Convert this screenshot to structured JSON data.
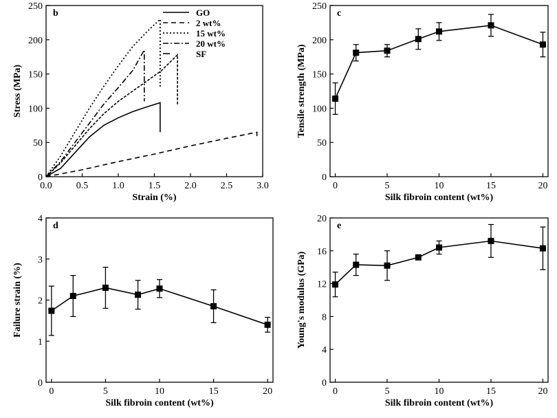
{
  "chart_data": [
    {
      "panel": "b",
      "type": "line",
      "xlabel": "Strain (%)",
      "ylabel": "Stress (MPa)",
      "xlim": [
        0,
        3.0
      ],
      "ylim": [
        0,
        250
      ],
      "xticks": [
        "0.0",
        "0.5",
        "1.0",
        "1.5",
        "2.0",
        "2.5",
        "3.0"
      ],
      "yticks": [
        "0",
        "50",
        "100",
        "150",
        "200",
        "250"
      ],
      "legend_position": "top-right",
      "series": [
        {
          "name": "GO",
          "dash": "solid",
          "x": [
            0,
            0.2,
            0.4,
            0.6,
            0.8,
            1.0,
            1.2,
            1.4,
            1.58,
            1.58
          ],
          "y": [
            0,
            12,
            35,
            58,
            75,
            86,
            95,
            102,
            108,
            65
          ]
        },
        {
          "name": "2 wt%",
          "dash": "dashed",
          "x": [
            0,
            0.5,
            1.0,
            1.5,
            2.0,
            2.5,
            2.92,
            2.92
          ],
          "y": [
            0,
            10,
            22,
            33,
            45,
            56,
            65,
            55
          ]
        },
        {
          "name": "15 wt%",
          "dash": "dotted",
          "x": [
            0,
            0.2,
            0.4,
            0.6,
            0.8,
            1.0,
            1.2,
            1.4,
            1.58,
            1.58
          ],
          "y": [
            0,
            30,
            65,
            100,
            132,
            162,
            190,
            212,
            230,
            130
          ]
        },
        {
          "name": "20 wt%",
          "dash": "dashdot",
          "x": [
            0,
            0.2,
            0.4,
            0.6,
            0.8,
            1.0,
            1.2,
            1.36,
            1.36
          ],
          "y": [
            0,
            22,
            50,
            78,
            106,
            130,
            155,
            185,
            110
          ]
        },
        {
          "name": "SF",
          "dash": "dense",
          "x": [
            0,
            0.2,
            0.4,
            0.6,
            0.8,
            1.0,
            1.2,
            1.4,
            1.6,
            1.82,
            1.82
          ],
          "y": [
            0,
            20,
            45,
            70,
            92,
            110,
            125,
            140,
            155,
            178,
            105
          ]
        }
      ]
    },
    {
      "panel": "c",
      "type": "line",
      "xlabel": "Silk fibroin content (wt%)",
      "ylabel": "Tensile strength (MPa)",
      "xlim": [
        -0.5,
        20.5
      ],
      "ylim": [
        0,
        250
      ],
      "xticks": [
        "0",
        "5",
        "10",
        "15",
        "20"
      ],
      "yticks": [
        "0",
        "50",
        "100",
        "150",
        "200",
        "250"
      ],
      "x": [
        0,
        2,
        5,
        8,
        10,
        15,
        20
      ],
      "y": [
        114,
        181,
        184,
        201,
        212,
        221,
        193
      ],
      "err": [
        23,
        12,
        9,
        15,
        13,
        16,
        18
      ]
    },
    {
      "panel": "d",
      "type": "line",
      "xlabel": "Silk fibroin content (wt%)",
      "ylabel": "Failure strain (%)",
      "xlim": [
        -0.5,
        20.5
      ],
      "ylim": [
        0,
        4
      ],
      "xticks": [
        "0",
        "5",
        "10",
        "15",
        "20"
      ],
      "yticks": [
        "0",
        "1",
        "2",
        "3",
        "4"
      ],
      "x": [
        0,
        2,
        5,
        8,
        10,
        15,
        20
      ],
      "y": [
        1.74,
        2.1,
        2.3,
        2.13,
        2.28,
        1.85,
        1.4
      ],
      "err": [
        0.6,
        0.5,
        0.5,
        0.35,
        0.22,
        0.4,
        0.18
      ]
    },
    {
      "panel": "e",
      "type": "line",
      "xlabel": "Silk fibroin content (wt%)",
      "ylabel": "Young's modulus (GPa)",
      "xlim": [
        -0.5,
        20.5
      ],
      "ylim": [
        0,
        20
      ],
      "xticks": [
        "0",
        "5",
        "10",
        "15",
        "20"
      ],
      "yticks": [
        "0",
        "4",
        "8",
        "12",
        "16",
        "20"
      ],
      "x": [
        0,
        2,
        5,
        8,
        10,
        15,
        20
      ],
      "y": [
        11.9,
        14.3,
        14.2,
        15.2,
        16.4,
        17.2,
        16.3
      ],
      "err": [
        1.5,
        1.3,
        1.8,
        0.1,
        0.8,
        2.0,
        2.6
      ]
    }
  ]
}
